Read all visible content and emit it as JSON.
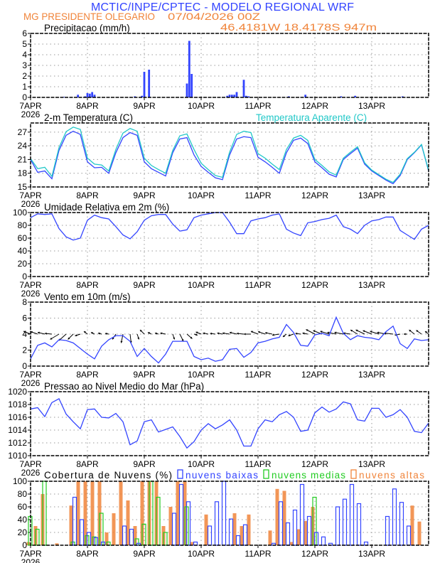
{
  "header": {
    "title": "MCTIC/INPE/CPTEC - MODELO REGIONAL WRF",
    "location": "MG PRESIDENTE OLEGARIO",
    "run": "07/04/2026 00Z",
    "coords": "46.4181W 18.4178S 947m"
  },
  "colors": {
    "blue": "#3344ff",
    "cyan": "#22c8c8",
    "orange": "#f0843a",
    "green": "#22cc22",
    "title_blue": "#3344ff",
    "title_orange": "#f0843a"
  },
  "x_axis": {
    "tick_labels": [
      "7APR",
      "8APR",
      "9APR",
      "10APR",
      "11APR",
      "12APR",
      "13APR"
    ],
    "year_label": "2026",
    "tick_hours": [
      0,
      24,
      48,
      72,
      96,
      120,
      144
    ],
    "range_hours": [
      0,
      168
    ]
  },
  "forecast_hour": [
    0,
    3,
    6,
    9,
    12,
    15,
    18,
    21,
    24,
    27,
    30,
    33,
    36,
    39,
    42,
    45,
    48,
    51,
    54,
    57,
    60,
    63,
    66,
    69,
    72,
    75,
    78,
    81,
    84,
    87,
    90,
    93,
    96,
    99,
    102,
    105,
    108,
    111,
    114,
    117,
    120,
    123,
    126,
    129,
    132,
    135,
    138,
    141,
    144,
    147,
    150,
    153,
    156,
    159,
    162,
    165,
    168
  ],
  "chart_data": [
    {
      "type": "bar",
      "title": "Precipitacao (mm/h)",
      "ylim": [
        0,
        6
      ],
      "yticks": [
        "0",
        "1",
        "2",
        "3",
        "4",
        "5",
        "6"
      ],
      "grid": true,
      "bars_hour_value": [
        [
          14,
          0.05
        ],
        [
          20,
          0.25
        ],
        [
          23,
          0.1
        ],
        [
          24,
          0.4
        ],
        [
          25,
          0.35
        ],
        [
          26,
          0.5
        ],
        [
          27,
          0.25
        ],
        [
          44,
          0.1
        ],
        [
          47,
          0.15
        ],
        [
          48,
          2.4
        ],
        [
          50,
          2.6
        ],
        [
          66,
          1.3
        ],
        [
          67,
          5.3
        ],
        [
          68,
          2.2
        ],
        [
          83,
          0.15
        ],
        [
          84,
          0.25
        ],
        [
          85,
          0.25
        ],
        [
          86,
          0.25
        ],
        [
          87,
          0.5
        ],
        [
          90,
          1.65
        ],
        [
          91,
          0.15
        ],
        [
          92,
          0.1
        ],
        [
          109,
          0.1
        ],
        [
          116,
          0.25
        ],
        [
          131,
          0.1
        ],
        [
          137,
          0.15
        ],
        [
          157,
          0.1
        ]
      ]
    },
    {
      "type": "line",
      "title": "2-m Temperatura (C)",
      "ylim": [
        15,
        29
      ],
      "yticks": [
        "15",
        "18",
        "21",
        "24",
        "27"
      ],
      "grid": true,
      "series": [
        {
          "key": "temp",
          "values": [
            21,
            18.2,
            18.5,
            16.8,
            23,
            26.3,
            27.2,
            26.5,
            20.5,
            19.2,
            19.3,
            18,
            22.5,
            25.8,
            26.9,
            26.3,
            20.5,
            19,
            18.2,
            17.4,
            22.5,
            25.5,
            25.8,
            22,
            19.5,
            18.2,
            17,
            16.6,
            22,
            25.5,
            26,
            25.8,
            21.5,
            20.5,
            19.3,
            18,
            22.5,
            25.2,
            25.7,
            24.5,
            20.5,
            19.2,
            17.8,
            17.2,
            21,
            22.3,
            23.5,
            20,
            18.5,
            17.5,
            16.5,
            15.7,
            17.5,
            21,
            22.5,
            24.2,
            18.5
          ]
        },
        {
          "name": "Temperatura Aparente (C)",
          "key": "apparent",
          "values": [
            21.2,
            19,
            19.3,
            17.3,
            23.6,
            27.1,
            28.1,
            27.6,
            21.3,
            20,
            19.8,
            18.5,
            23.2,
            26.8,
            27.8,
            27.2,
            21.3,
            19.7,
            18.8,
            18,
            23,
            26.2,
            26.6,
            23.2,
            20.2,
            18.8,
            17.5,
            17.1,
            22.6,
            26.5,
            27.2,
            26.9,
            22.3,
            21.3,
            20,
            18.8,
            23.2,
            25.7,
            26.3,
            25.2,
            21,
            19.7,
            18.3,
            17.6,
            21.3,
            22.6,
            23.8,
            20.3,
            18.7,
            17.7,
            16.7,
            16,
            17.8,
            21.2,
            22.6,
            24.3,
            18.6
          ]
        }
      ]
    },
    {
      "type": "line",
      "title": "Umidade Relativa em 2m (%)",
      "ylim": [
        0,
        100
      ],
      "yticks": [
        "0",
        "20",
        "40",
        "60",
        "80",
        "100"
      ],
      "grid": true,
      "series": [
        {
          "key": "rh",
          "values": [
            92,
            98,
            97,
            98,
            75,
            62,
            57,
            60,
            88,
            96,
            92,
            90,
            78,
            65,
            59,
            70,
            88,
            95,
            97,
            97,
            82,
            71,
            73,
            92,
            96,
            98,
            100,
            100,
            85,
            67,
            67,
            87,
            90,
            92,
            96,
            98,
            74,
            68,
            64,
            84,
            86,
            89,
            91,
            96,
            78,
            74,
            67,
            80,
            87,
            89,
            93,
            93,
            72,
            65,
            58,
            74,
            80
          ]
        }
      ]
    },
    {
      "type": "line",
      "title": "Vento em 10m (m/s)",
      "ylim": [
        0,
        8
      ],
      "yticks": [
        "0",
        "2",
        "4",
        "6",
        "8"
      ],
      "grid": true,
      "series": [
        {
          "key": "speed",
          "values": [
            0.9,
            2.6,
            2.9,
            2.4,
            3.3,
            3.2,
            2.9,
            2.2,
            1.5,
            0.9,
            2.5,
            3.3,
            3.8,
            3.8,
            3.1,
            1.2,
            2.2,
            1.2,
            0.4,
            1.5,
            3.1,
            3.1,
            3.1,
            1.2,
            0.8,
            1,
            0.6,
            0.8,
            2.1,
            2.2,
            1.1,
            1.7,
            2.9,
            3.1,
            3.4,
            3.6,
            5.2,
            4.2,
            2.6,
            2.5,
            3.9,
            4.1,
            3.8,
            6.1,
            4.1,
            3.3,
            3.8,
            3.6,
            3.5,
            3.3,
            4.3,
            5,
            2.8,
            2.2,
            3.4,
            3.2,
            3.3
          ]
        }
      ],
      "vectors": {
        "baseline": 4,
        "u": [
          -2,
          -2,
          -2,
          -2,
          -2.5,
          -2,
          -1.5,
          -1.5,
          -1,
          -1,
          -1,
          -1,
          -1,
          -0.5,
          0.3,
          0.5,
          -1.2,
          -1,
          -1,
          -1.5,
          0.5,
          1,
          1.5,
          1,
          -1.5,
          -1.5,
          -1.5,
          -1.5,
          -2,
          -2,
          -2,
          -2,
          -2,
          -2,
          -2,
          -2,
          -1,
          -1.5,
          -1.5,
          -1.5,
          -2.5,
          -2.5,
          -2.5,
          -2.5,
          -2.5,
          -2,
          -2,
          -2.5,
          -2.5,
          -2.5,
          -2.5,
          -2.5,
          -1.5,
          -1,
          -1.5,
          -1.5,
          -1
        ],
        "v": [
          0.8,
          0.7,
          0.5,
          0.2,
          -1.5,
          -1.8,
          -1.5,
          -0.5,
          0.8,
          0.5,
          0.3,
          0.2,
          -1.5,
          -2.5,
          -2.5,
          -1.5,
          1.2,
          0.5,
          0.3,
          0.3,
          -1.5,
          -2,
          -1.3,
          -0.3,
          0.6,
          0.3,
          0.2,
          0.3,
          0.3,
          0.5,
          0.2,
          0,
          0.8,
          0.7,
          0.4,
          -0.3,
          -0.8,
          -0.5,
          0.2,
          0.3,
          1.3,
          1,
          0.8,
          0.5,
          0.5,
          0.3,
          1.2,
          1.2,
          1,
          0.8,
          0.5,
          0.3,
          -0.3,
          0,
          1.2,
          1.1,
          0.8
        ]
      }
    },
    {
      "type": "line",
      "title": "Pressao ao Nivel Medio do Mar (hPa)",
      "ylim": [
        1010,
        1020
      ],
      "yticks": [
        "1010",
        "1012",
        "1014",
        "1016",
        "1018",
        "1020"
      ],
      "grid": true,
      "series": [
        {
          "key": "mslp",
          "values": [
            1017.3,
            1017.5,
            1016.1,
            1018.3,
            1018.9,
            1016.5,
            1015.3,
            1014.2,
            1017.2,
            1017.3,
            1016,
            1015.9,
            1016.6,
            1015.3,
            1011.7,
            1012.3,
            1015.3,
            1015.6,
            1013.7,
            1014.1,
            1014.5,
            1013,
            1011.2,
            1012.2,
            1014,
            1015,
            1014.2,
            1014.8,
            1015.6,
            1014,
            1011.5,
            1011.5,
            1014.2,
            1015.6,
            1015.3,
            1016.4,
            1016.9,
            1016,
            1013.8,
            1014,
            1016.7,
            1017.6,
            1016.8,
            1017.3,
            1018.4,
            1018.1,
            1015.6,
            1015.4,
            1017.4,
            1017.4,
            1016,
            1016.4,
            1017.2,
            1016,
            1013.8,
            1013.6,
            1015.1
          ]
        }
      ]
    },
    {
      "type": "bar",
      "title": "Cobertura de Nuvens (%)",
      "ylim": [
        0,
        100
      ],
      "yticks": [
        "0",
        "20",
        "40",
        "60",
        "80",
        "100"
      ],
      "grid": true,
      "legend": "top",
      "series": [
        {
          "name": "nuvens altas",
          "key": "high",
          "values": [
            5,
            30,
            80,
            0,
            3,
            0,
            62,
            100,
            100,
            100,
            100,
            20,
            50,
            100,
            70,
            30,
            100,
            100,
            100,
            30,
            60,
            100,
            100,
            5,
            0,
            48,
            0,
            0,
            0,
            50,
            30,
            48,
            0,
            0,
            23,
            88,
            85,
            5,
            25,
            38,
            60,
            0,
            0,
            0,
            0,
            0,
            0,
            0,
            0,
            0,
            0,
            0,
            0,
            0,
            62,
            37,
            0
          ]
        },
        {
          "name": "nuvens medias",
          "key": "mid",
          "values": [
            45,
            25,
            100,
            0,
            0,
            0,
            5,
            0,
            15,
            13,
            50,
            5,
            0,
            0,
            0,
            10,
            33,
            100,
            75,
            20,
            0,
            0,
            60,
            0,
            0,
            0,
            0,
            0,
            0,
            0,
            0,
            0,
            0,
            0,
            0,
            0,
            0,
            0,
            0,
            0,
            75,
            0,
            0,
            0,
            0,
            0,
            0,
            0,
            0,
            0,
            0,
            0,
            0,
            0,
            0,
            0,
            0
          ]
        },
        {
          "name": "nuvens baixas",
          "key": "low",
          "values": [
            0,
            0,
            0,
            0,
            0,
            0,
            75,
            40,
            20,
            12,
            5,
            0,
            0,
            30,
            25,
            3,
            0,
            0,
            0,
            0,
            50,
            95,
            68,
            5,
            0,
            30,
            68,
            100,
            41,
            15,
            32,
            0,
            0,
            0,
            3,
            68,
            35,
            55,
            95,
            45,
            20,
            13,
            3,
            60,
            72,
            95,
            65,
            5,
            0,
            0,
            45,
            88,
            67,
            30,
            0,
            0,
            0
          ]
        }
      ]
    }
  ]
}
